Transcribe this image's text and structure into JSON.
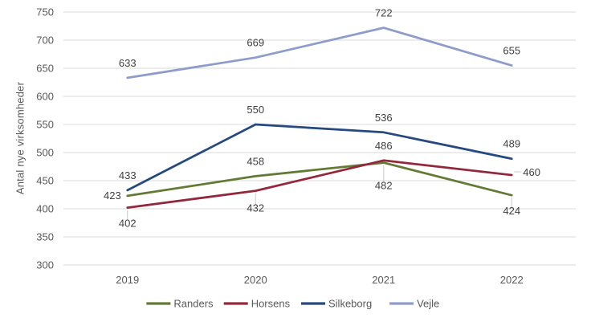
{
  "chart_data": {
    "type": "line",
    "title": "",
    "xlabel": "",
    "ylabel": "Antal nye virksomheder",
    "categories": [
      "2019",
      "2020",
      "2021",
      "2022"
    ],
    "series": [
      {
        "name": "Randers",
        "color": "#637A35",
        "values": [
          423,
          458,
          482,
          424
        ],
        "labels": [
          {
            "placement": "left"
          },
          {
            "placement": "above"
          },
          {
            "placement": "below",
            "dy": 33,
            "leader": "v"
          },
          {
            "placement": "below",
            "leader": "v"
          }
        ]
      },
      {
        "name": "Horsens",
        "color": "#93273C",
        "values": [
          402,
          432,
          486,
          460
        ],
        "labels": [
          {
            "placement": "below",
            "leader": "v"
          },
          {
            "placement": "below",
            "dy": 26,
            "leader": "v"
          },
          {
            "placement": "above"
          },
          {
            "placement": "right",
            "leader": "h"
          }
        ]
      },
      {
        "name": "Silkeborg",
        "color": "#26497F",
        "values": [
          433,
          550,
          536,
          489
        ],
        "labels": [
          {
            "placement": "above"
          },
          {
            "placement": "above"
          },
          {
            "placement": "above"
          },
          {
            "placement": "above"
          }
        ]
      },
      {
        "name": "Vejle",
        "color": "#8E9CC9",
        "values": [
          633,
          669,
          722,
          655
        ],
        "labels": [
          {
            "placement": "above"
          },
          {
            "placement": "above"
          },
          {
            "placement": "above"
          },
          {
            "placement": "above"
          }
        ]
      }
    ],
    "ylim": [
      300,
      750
    ],
    "ytick_step": 50,
    "grid": true,
    "legend_position": "bottom"
  },
  "style_colors": {
    "background": "#ffffff",
    "gridline": "#D9D9D9",
    "leader_line": "#C9C9C9",
    "axis_text": "#595959",
    "data_label_text": "#404040",
    "legend_text": "#595959"
  }
}
